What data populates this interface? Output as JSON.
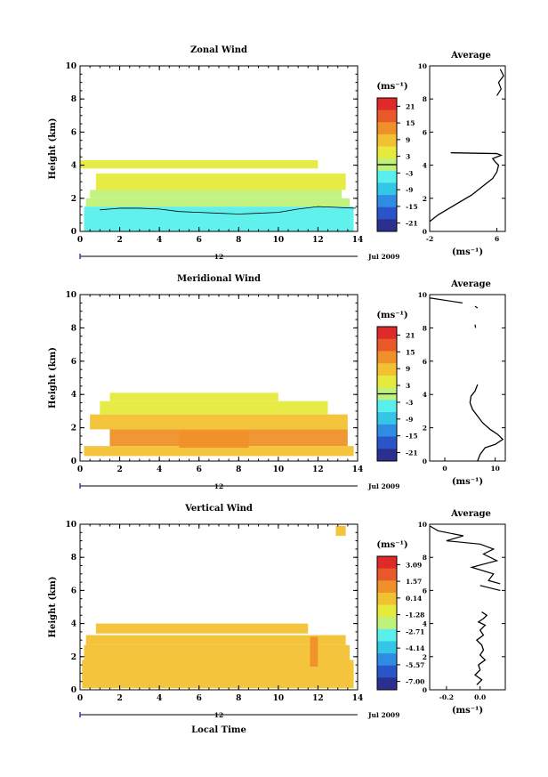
{
  "chart_data": [
    {
      "type": "heatmap",
      "title": "Zonal Wind",
      "ylabel": "Height (km)",
      "xlim": [
        0,
        14
      ],
      "ylim": [
        0,
        10
      ],
      "x_ticks": [
        "0",
        "2",
        "4",
        "6",
        "8",
        "10",
        "12",
        "14"
      ],
      "y_ticks": [
        "0",
        "2",
        "4",
        "6",
        "8",
        "10"
      ],
      "date_axis": {
        "day": "12",
        "month_label": "Jul 2009"
      },
      "colorbar": {
        "unit": "(ms⁻¹)",
        "ticks": [
          "21",
          "15",
          "9",
          "3",
          "-3",
          "-9",
          "-15",
          "-21"
        ],
        "range": [
          -24,
          24
        ],
        "zero_line": true
      },
      "layers": [
        {
          "x0": 0.2,
          "x1": 13.8,
          "y0": 0.0,
          "y1": 0.7,
          "value": -6
        },
        {
          "x0": 0.2,
          "x1": 13.8,
          "y0": 0.7,
          "y1": 1.5,
          "value": -4
        },
        {
          "x0": 0.3,
          "x1": 13.6,
          "y0": 1.5,
          "y1": 2.0,
          "value": 0
        },
        {
          "x0": 0.5,
          "x1": 13.2,
          "y0": 2.0,
          "y1": 2.5,
          "value": 2
        },
        {
          "x0": 0.8,
          "x1": 13.4,
          "y0": 2.5,
          "y1": 3.5,
          "value": 4
        },
        {
          "x0": 0.0,
          "x1": 12.0,
          "y0": 3.8,
          "y1": 4.3,
          "value": 3
        }
      ],
      "overlay_line": {
        "x": [
          1.0,
          2.0,
          3.0,
          4.0,
          5.0,
          6.0,
          7.0,
          8.0,
          9.0,
          10.0,
          11.0,
          12.0,
          13.0,
          13.9
        ],
        "y": [
          1.3,
          1.4,
          1.4,
          1.35,
          1.2,
          1.15,
          1.1,
          1.05,
          1.1,
          1.15,
          1.35,
          1.5,
          1.45,
          1.4
        ]
      },
      "average": {
        "title": "Average",
        "xlabel": "(ms⁻¹)",
        "xlim": [
          -2,
          7
        ],
        "x_ticks": [
          "-2",
          "6"
        ],
        "x_tick_values": [
          -2,
          6
        ],
        "y_ticks": [
          "0",
          "2",
          "4",
          "6",
          "8",
          "10"
        ],
        "profile": {
          "x": [
            -2,
            -1,
            1,
            3,
            4.5,
            5.5,
            6,
            6.2,
            5.8,
            5.5,
            6.5,
            6,
            0.5
          ],
          "y": [
            0.6,
            1.0,
            1.6,
            2.2,
            2.8,
            3.2,
            3.6,
            4.0,
            4.2,
            4.4,
            4.6,
            4.7,
            4.75
          ]
        },
        "upper_segments": [
          {
            "x": [
              6.0,
              6.5,
              6.2,
              6.8,
              6.4
            ],
            "y": [
              8.2,
              8.6,
              9.0,
              9.4,
              9.8
            ]
          }
        ]
      }
    },
    {
      "type": "heatmap",
      "title": "Meridional Wind",
      "ylabel": "Height (km)",
      "xlim": [
        0,
        14
      ],
      "ylim": [
        0,
        10
      ],
      "x_ticks": [
        "0",
        "2",
        "4",
        "6",
        "8",
        "10",
        "12",
        "14"
      ],
      "y_ticks": [
        "0",
        "2",
        "4",
        "6",
        "8",
        "10"
      ],
      "date_axis": {
        "day": "12",
        "month_label": "Jul 2009"
      },
      "colorbar": {
        "unit": "(ms⁻¹)",
        "ticks": [
          "21",
          "15",
          "9",
          "3",
          "-3",
          "-9",
          "-15",
          "-21"
        ],
        "range": [
          -24,
          24
        ],
        "zero_line": true
      },
      "layers": [
        {
          "x0": 0.2,
          "x1": 13.8,
          "y0": 0.3,
          "y1": 0.9,
          "value": 10
        },
        {
          "x0": 1.5,
          "x1": 13.5,
          "y0": 0.9,
          "y1": 1.9,
          "value": 11
        },
        {
          "x0": 5.0,
          "x1": 8.5,
          "y0": 0.8,
          "y1": 1.8,
          "value": 15
        },
        {
          "x0": 0.5,
          "x1": 13.5,
          "y0": 1.9,
          "y1": 2.8,
          "value": 7
        },
        {
          "x0": 1.0,
          "x1": 12.5,
          "y0": 2.8,
          "y1": 3.6,
          "value": 5
        },
        {
          "x0": 1.5,
          "x1": 10.0,
          "y0": 3.6,
          "y1": 4.1,
          "value": 3
        }
      ],
      "average": {
        "title": "Average",
        "xlabel": "(ms⁻¹)",
        "xlim": [
          -3,
          12
        ],
        "x_ticks": [
          "0",
          "10"
        ],
        "x_tick_values": [
          0,
          10
        ],
        "y_ticks": [
          "0",
          "2",
          "4",
          "6",
          "8",
          "10"
        ],
        "profile": {
          "x": [
            6.5,
            7,
            8,
            10,
            11.5,
            10.5,
            9,
            7.5,
            6.5,
            5.5,
            5,
            5.2,
            6,
            6.5
          ],
          "y": [
            0.0,
            0.4,
            0.8,
            1.0,
            1.3,
            1.6,
            1.9,
            2.3,
            2.7,
            3.1,
            3.5,
            3.9,
            4.2,
            4.6
          ]
        },
        "upper_segments": [
          {
            "x": [
              -3.0,
              3.5
            ],
            "y": [
              9.8,
              9.5
            ]
          },
          {
            "x": [
              6.0,
              6.5
            ],
            "y": [
              9.3,
              9.2
            ]
          },
          {
            "x": [
              6.0,
              6.1
            ],
            "y": [
              8.2,
              8.0
            ]
          }
        ]
      }
    },
    {
      "type": "heatmap",
      "title": "Vertical Wind",
      "ylabel": "Height (km)",
      "xlabel": "Local Time",
      "xlim": [
        0,
        14
      ],
      "ylim": [
        0,
        10
      ],
      "x_ticks": [
        "0",
        "2",
        "4",
        "6",
        "8",
        "10",
        "12",
        "14"
      ],
      "y_ticks": [
        "0",
        "2",
        "4",
        "6",
        "8",
        "10"
      ],
      "date_axis": {
        "day": "12",
        "month_label": "Jul 2009"
      },
      "colorbar": {
        "unit": "(ms⁻¹)",
        "ticks": [
          "3.09",
          "1.57",
          "0.14",
          "-1.28",
          "-2.71",
          "-4.14",
          "-5.57",
          "-7.00"
        ],
        "range": [
          -7.7,
          3.8
        ],
        "zero_line": false
      },
      "layers": [
        {
          "x0": 0.1,
          "x1": 13.8,
          "y0": 0.1,
          "y1": 1.8,
          "value": 0.6
        },
        {
          "x0": 0.2,
          "x1": 13.6,
          "y0": 1.8,
          "y1": 2.7,
          "value": 0.6
        },
        {
          "x0": 0.3,
          "x1": 13.4,
          "y0": 2.7,
          "y1": 3.3,
          "value": 0.5
        },
        {
          "x0": 0.8,
          "x1": 11.5,
          "y0": 3.4,
          "y1": 4.0,
          "value": 0.5
        },
        {
          "x0": 11.6,
          "x1": 12.0,
          "y0": 1.4,
          "y1": 3.2,
          "value": 1.4
        },
        {
          "x0": 12.9,
          "x1": 13.4,
          "y0": 9.3,
          "y1": 9.9,
          "value": 0.0
        }
      ],
      "average": {
        "title": "Average",
        "xlabel": "(ms⁻¹)",
        "xlim": [
          -0.3,
          0.15
        ],
        "x_ticks": [
          "-0.2",
          "0.0"
        ],
        "x_tick_values": [
          -0.2,
          0.0
        ],
        "y_ticks": [
          "0",
          "2",
          "4",
          "6",
          "8",
          "10"
        ],
        "profile": {
          "x": [
            -0.02,
            0.01,
            -0.03,
            0.0,
            -0.01,
            0.03,
            0.0,
            0.02,
            0.01,
            -0.02,
            0.02,
            0.0,
            0.03,
            -0.01,
            0.02,
            0.04,
            0.01
          ],
          "y": [
            0.3,
            0.6,
            0.9,
            1.2,
            1.5,
            1.8,
            2.1,
            2.4,
            2.7,
            3.0,
            3.3,
            3.6,
            3.9,
            4.1,
            4.3,
            4.5,
            4.7
          ]
        },
        "upper_segments": [
          {
            "x": [
              -0.3,
              -0.25,
              -0.1,
              -0.2,
              0.0,
              0.08,
              0.02,
              0.1,
              -0.05,
              0.08,
              0.05,
              0.12
            ],
            "y": [
              9.9,
              9.6,
              9.3,
              9.0,
              8.8,
              8.5,
              8.2,
              7.8,
              7.4,
              7.0,
              6.6,
              6.4
            ]
          },
          {
            "x": [
              0.0,
              0.12
            ],
            "y": [
              6.3,
              6.0
            ]
          }
        ]
      }
    }
  ]
}
